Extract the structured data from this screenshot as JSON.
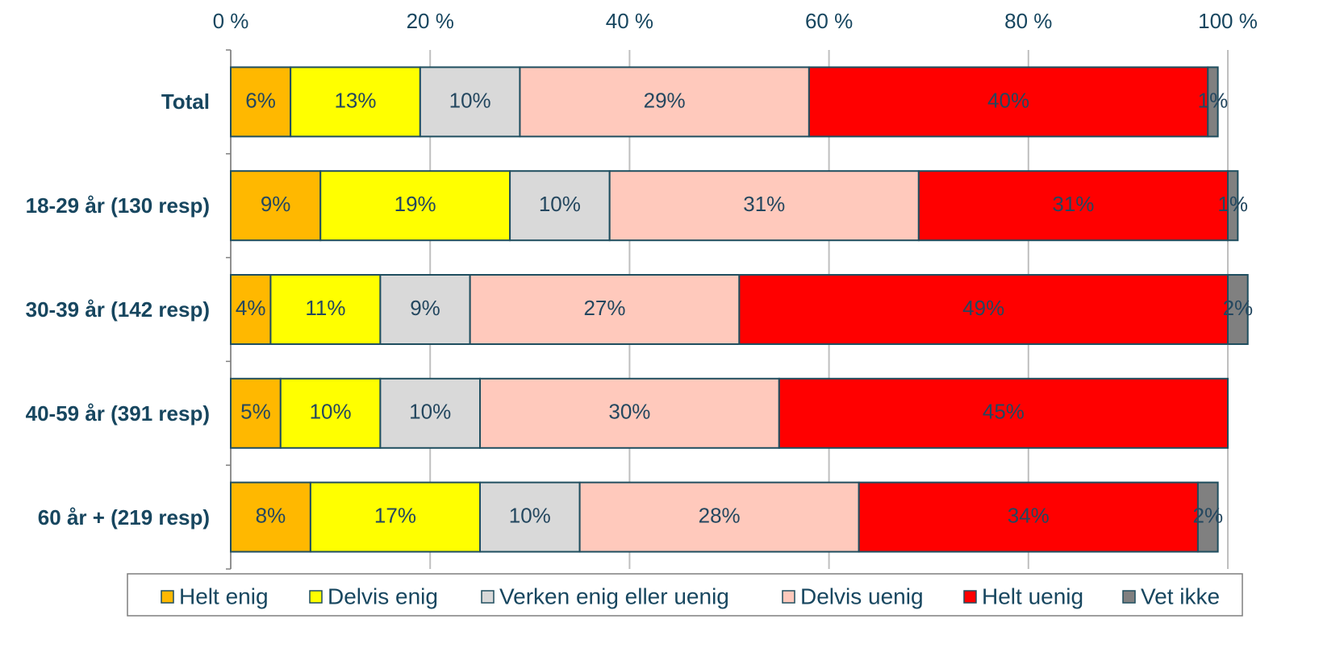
{
  "chart_data": {
    "type": "stacked_bar_horizontal",
    "categories": [
      "Total",
      "18-29 år (130 resp)",
      "30-39 år (142 resp)",
      "40-59 år (391 resp)",
      "60 år + (219 resp)"
    ],
    "series": [
      {
        "name": "Helt enig",
        "color": "#FFB800",
        "values": [
          6,
          9,
          4,
          5,
          8
        ],
        "value_labels": [
          "6%",
          "9%",
          "4%",
          "5%",
          "8%"
        ]
      },
      {
        "name": "Delvis enig",
        "color": "#FFFF00",
        "values": [
          13,
          19,
          11,
          10,
          17
        ],
        "value_labels": [
          "13%",
          "19%",
          "11%",
          "10%",
          "17%"
        ]
      },
      {
        "name": "Verken enig eller uenig",
        "color": "#D9D9D9",
        "values": [
          10,
          10,
          9,
          10,
          10
        ],
        "value_labels": [
          "10%",
          "10%",
          "9%",
          "10%",
          "10%"
        ]
      },
      {
        "name": "Delvis uenig",
        "color": "#FFC9BC",
        "values": [
          29,
          31,
          27,
          30,
          28
        ],
        "value_labels": [
          "29%",
          "31%",
          "27%",
          "30%",
          "28%"
        ]
      },
      {
        "name": "Helt uenig",
        "color": "#FF0000",
        "values": [
          40,
          31,
          49,
          45,
          34
        ],
        "value_labels": [
          "40%",
          "31%",
          "49%",
          "45%",
          "34%"
        ]
      },
      {
        "name": "Vet ikke",
        "color": "#808080",
        "values": [
          1,
          1,
          2,
          null,
          2
        ],
        "value_labels": [
          "1%",
          "1%",
          "2%",
          null,
          "2%"
        ]
      }
    ],
    "xlim": [
      0,
      100
    ],
    "xticks": [
      {
        "value": 0,
        "label": "0 %"
      },
      {
        "value": 20,
        "label": "20 %"
      },
      {
        "value": 40,
        "label": "40 %"
      },
      {
        "value": 60,
        "label": "60 %"
      },
      {
        "value": 80,
        "label": "80 %"
      },
      {
        "value": 100,
        "label": "100 %"
      }
    ],
    "grid": true,
    "legend": "bottom"
  }
}
